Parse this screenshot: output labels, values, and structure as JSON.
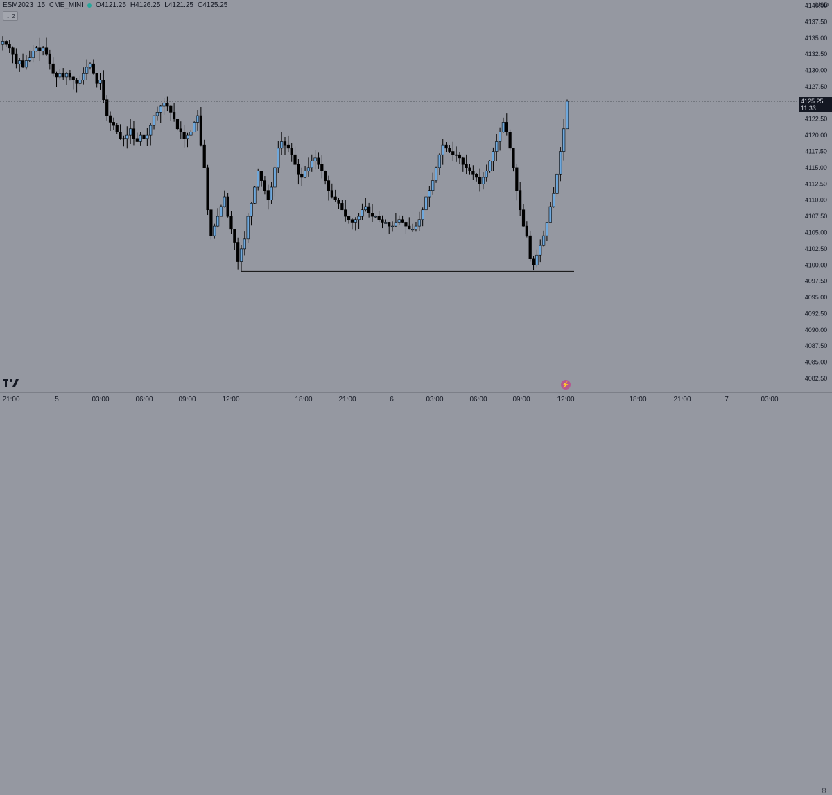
{
  "header": {
    "symbol": "ESM2023",
    "interval": "15",
    "exchange": "CME_MINI",
    "open": "O4121.25",
    "high": "H4126.25",
    "low": "L4121.25",
    "close": "C4125.25",
    "indicator_toggle": "2",
    "currency": "USD"
  },
  "colors": {
    "background": "#9598a1",
    "up_candle": "#6fa8dc",
    "down_candle": "#000000",
    "status_dot": "#26a69a",
    "level_line": "#1c1c1c"
  },
  "icons": [
    "tradingview-logo-icon",
    "chevron-down-icon",
    "flash-icon",
    "settings-icon"
  ],
  "price_tag": {
    "price": "4125.25",
    "countdown": "11:33"
  },
  "chart_data": {
    "type": "candlestick",
    "ylim": [
      4081.25,
      4141.25
    ],
    "y_ticks": [
      "4140.00",
      "4137.50",
      "4135.00",
      "4132.50",
      "4130.00",
      "4127.50",
      "4125.00",
      "4122.50",
      "4120.00",
      "4117.50",
      "4115.00",
      "4112.50",
      "4110.00",
      "4107.50",
      "4105.00",
      "4102.50",
      "4100.00",
      "4097.50",
      "4095.00",
      "4092.50",
      "4090.00",
      "4087.50",
      "4085.00",
      "4082.50"
    ],
    "x_ticks": [
      "21:00",
      "5",
      "03:00",
      "06:00",
      "09:00",
      "12:00",
      "18:00",
      "21:00",
      "6",
      "03:00",
      "06:00",
      "09:00",
      "12:00",
      "18:00",
      "21:00",
      "7",
      "03:00"
    ],
    "last_price": 4125.25,
    "horizontal_level": 4099.0,
    "close_path": [
      4134.5,
      4134.0,
      4133.5,
      4132.5,
      4131.0,
      4131.5,
      4130.5,
      4131.5,
      4132.0,
      4133.0,
      4133.5,
      4133.0,
      4133.5,
      4132.5,
      4131.0,
      4129.5,
      4129.0,
      4129.5,
      4129.0,
      4129.5,
      4129.0,
      4128.5,
      4128.0,
      4128.5,
      4129.5,
      4130.5,
      4131.0,
      4129.5,
      4128.0,
      4128.5,
      4125.5,
      4123.0,
      4122.0,
      4121.5,
      4120.5,
      4119.5,
      4119.5,
      4120.0,
      4121.0,
      4119.5,
      4119.0,
      4120.0,
      4119.5,
      4120.0,
      4121.5,
      4123.0,
      4123.5,
      4124.5,
      4125.0,
      4124.5,
      4123.5,
      4122.5,
      4121.0,
      4120.5,
      4119.5,
      4120.0,
      4120.5,
      4122.0,
      4123.0,
      4118.5,
      4115.0,
      4108.5,
      4104.5,
      4106.0,
      4107.5,
      4109.0,
      4110.5,
      4107.5,
      4105.5,
      4103.5,
      4100.5,
      4102.5,
      4104.0,
      4107.5,
      4109.5,
      4112.0,
      4114.5,
      4113.0,
      4111.5,
      4110.0,
      4112.0,
      4115.0,
      4118.0,
      4119.0,
      4118.5,
      4118.0,
      4117.0,
      4115.5,
      4114.0,
      4113.5,
      4114.5,
      4115.0,
      4116.0,
      4116.5,
      4115.5,
      4114.5,
      4113.0,
      4111.5,
      4110.5,
      4110.0,
      4109.5,
      4108.5,
      4107.5,
      4107.0,
      4106.5,
      4107.0,
      4107.5,
      4108.5,
      4109.0,
      4108.0,
      4107.5,
      4107.5,
      4107.0,
      4106.5,
      4106.5,
      4106.0,
      4106.0,
      4106.5,
      4107.0,
      4106.5,
      4106.0,
      4105.5,
      4105.5,
      4106.0,
      4107.0,
      4108.5,
      4110.5,
      4111.5,
      4113.0,
      4115.0,
      4117.0,
      4118.5,
      4118.0,
      4117.5,
      4117.0,
      4117.0,
      4116.5,
      4115.5,
      4115.0,
      4114.5,
      4114.0,
      4113.5,
      4112.5,
      4113.5,
      4114.5,
      4116.0,
      4117.5,
      4119.0,
      4120.5,
      4122.0,
      4120.5,
      4118.0,
      4115.0,
      4111.5,
      4108.5,
      4106.0,
      4104.5,
      4101.0,
      4100.0,
      4101.5,
      4103.0,
      4104.5,
      4106.5,
      4109.0,
      4111.0,
      4114.0,
      4117.5,
      4121.0,
      4125.25
    ]
  },
  "time_axis_labels": [
    "21:00",
    "5",
    "03:00",
    "06:00",
    "09:00",
    "12:00",
    "18:00",
    "21:00",
    "6",
    "03:00",
    "06:00",
    "09:00",
    "12:00",
    "18:00",
    "21:00",
    "7",
    "03:00"
  ]
}
